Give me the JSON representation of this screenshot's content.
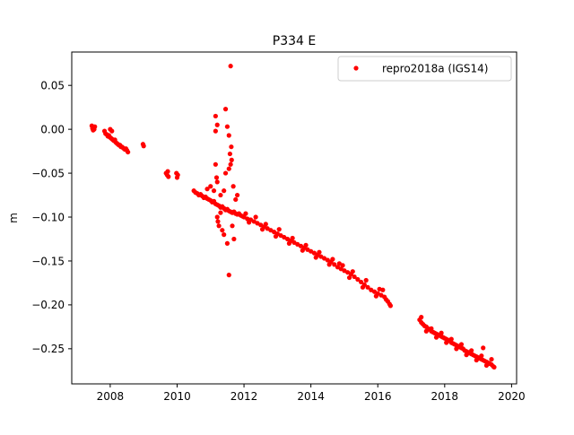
{
  "chart_data": {
    "type": "scatter",
    "title": "P334 E",
    "xlabel": "",
    "ylabel": "m",
    "xlim": [
      2006.85,
      2020.15
    ],
    "ylim": [
      -0.29,
      0.088
    ],
    "xticks": [
      2008,
      2010,
      2012,
      2014,
      2016,
      2018,
      2020
    ],
    "xtick_labels": [
      "2008",
      "2010",
      "2012",
      "2014",
      "2016",
      "2018",
      "2020"
    ],
    "yticks": [
      0.05,
      0.0,
      -0.05,
      -0.1,
      -0.15,
      -0.2,
      -0.25
    ],
    "ytick_labels": [
      "0.05",
      "0.00",
      "−0.05",
      "−0.10",
      "−0.15",
      "−0.20",
      "−0.25"
    ],
    "grid": false,
    "legend_position": "top-right",
    "series": [
      {
        "name": "repro2018a (IGS14)",
        "color": "#ff0000",
        "marker": "circle",
        "points": [
          [
            2007.45,
            0.004
          ],
          [
            2007.47,
            0.001
          ],
          [
            2007.49,
            -0.001
          ],
          [
            2007.5,
            0.002
          ],
          [
            2007.52,
            0.0
          ],
          [
            2007.54,
            0.003
          ],
          [
            2007.83,
            -0.002
          ],
          [
            2007.86,
            -0.005
          ],
          [
            2007.9,
            -0.006
          ],
          [
            2007.93,
            -0.008
          ],
          [
            2007.96,
            -0.007
          ],
          [
            2007.99,
            -0.009
          ],
          [
            2008.02,
            -0.01
          ],
          [
            2008.05,
            -0.011
          ],
          [
            2008.08,
            -0.012
          ],
          [
            2008.11,
            -0.013
          ],
          [
            2008.14,
            -0.012
          ],
          [
            2008.17,
            -0.015
          ],
          [
            2008.2,
            -0.016
          ],
          [
            2008.23,
            -0.017
          ],
          [
            2008.26,
            -0.018
          ],
          [
            2008.29,
            -0.018
          ],
          [
            2008.32,
            -0.02
          ],
          [
            2008.35,
            -0.02
          ],
          [
            2008.38,
            -0.021
          ],
          [
            2008.41,
            -0.022
          ],
          [
            2008.44,
            -0.023
          ],
          [
            2008.47,
            -0.022
          ],
          [
            2008.5,
            -0.024
          ],
          [
            2008.53,
            -0.026
          ],
          [
            2008.0,
            0.0
          ],
          [
            2008.05,
            -0.002
          ],
          [
            2008.98,
            -0.017
          ],
          [
            2009.0,
            -0.019
          ],
          [
            2009.67,
            -0.05
          ],
          [
            2009.7,
            -0.052
          ],
          [
            2009.72,
            -0.048
          ],
          [
            2009.74,
            -0.054
          ],
          [
            2009.98,
            -0.05
          ],
          [
            2010.0,
            -0.055
          ],
          [
            2010.02,
            -0.052
          ],
          [
            2010.5,
            -0.07
          ],
          [
            2010.55,
            -0.072
          ],
          [
            2010.6,
            -0.073
          ],
          [
            2010.65,
            -0.075
          ],
          [
            2010.7,
            -0.074
          ],
          [
            2010.75,
            -0.076
          ],
          [
            2010.8,
            -0.078
          ],
          [
            2010.85,
            -0.077
          ],
          [
            2010.9,
            -0.079
          ],
          [
            2010.95,
            -0.08
          ],
          [
            2011.0,
            -0.081
          ],
          [
            2011.05,
            -0.083
          ],
          [
            2011.1,
            -0.082
          ],
          [
            2011.15,
            -0.085
          ],
          [
            2011.2,
            -0.086
          ],
          [
            2011.25,
            -0.087
          ],
          [
            2011.3,
            -0.089
          ],
          [
            2011.35,
            -0.088
          ],
          [
            2011.4,
            -0.09
          ],
          [
            2011.45,
            -0.092
          ],
          [
            2011.5,
            -0.091
          ],
          [
            2011.55,
            -0.093
          ],
          [
            2011.6,
            -0.094
          ],
          [
            2011.65,
            -0.095
          ],
          [
            2011.7,
            -0.094
          ],
          [
            2011.75,
            -0.096
          ],
          [
            2011.8,
            -0.097
          ],
          [
            2011.85,
            -0.096
          ],
          [
            2011.9,
            -0.098
          ],
          [
            2011.95,
            -0.099
          ],
          [
            2010.9,
            -0.068
          ],
          [
            2011.0,
            -0.065
          ],
          [
            2011.1,
            -0.07
          ],
          [
            2011.2,
            -0.06
          ],
          [
            2011.3,
            -0.075
          ],
          [
            2011.4,
            -0.07
          ],
          [
            2011.15,
            -0.04
          ],
          [
            2011.18,
            -0.055
          ],
          [
            2011.2,
            -0.1
          ],
          [
            2011.22,
            -0.105
          ],
          [
            2011.25,
            -0.11
          ],
          [
            2011.3,
            -0.095
          ],
          [
            2011.35,
            -0.115
          ],
          [
            2011.4,
            -0.12
          ],
          [
            2011.45,
            -0.05
          ],
          [
            2011.5,
            -0.13
          ],
          [
            2011.55,
            -0.045
          ],
          [
            2011.6,
            -0.04
          ],
          [
            2011.63,
            -0.035
          ],
          [
            2011.65,
            -0.11
          ],
          [
            2011.7,
            -0.125
          ],
          [
            2011.75,
            -0.08
          ],
          [
            2011.8,
            -0.075
          ],
          [
            2011.15,
            0.015
          ],
          [
            2011.15,
            -0.002
          ],
          [
            2011.2,
            0.005
          ],
          [
            2011.45,
            0.023
          ],
          [
            2011.5,
            0.003
          ],
          [
            2011.55,
            -0.007
          ],
          [
            2011.6,
            0.072
          ],
          [
            2011.62,
            -0.02
          ],
          [
            2011.58,
            -0.028
          ],
          [
            2011.68,
            -0.065
          ],
          [
            2011.55,
            -0.166
          ],
          [
            2012.0,
            -0.1
          ],
          [
            2012.1,
            -0.102
          ],
          [
            2012.2,
            -0.103
          ],
          [
            2012.3,
            -0.105
          ],
          [
            2012.4,
            -0.107
          ],
          [
            2012.5,
            -0.109
          ],
          [
            2012.6,
            -0.111
          ],
          [
            2012.7,
            -0.113
          ],
          [
            2012.8,
            -0.115
          ],
          [
            2012.9,
            -0.117
          ],
          [
            2013.0,
            -0.119
          ],
          [
            2013.1,
            -0.121
          ],
          [
            2013.2,
            -0.123
          ],
          [
            2013.3,
            -0.125
          ],
          [
            2013.4,
            -0.127
          ],
          [
            2013.5,
            -0.129
          ],
          [
            2013.6,
            -0.131
          ],
          [
            2013.7,
            -0.133
          ],
          [
            2013.8,
            -0.135
          ],
          [
            2013.9,
            -0.137
          ],
          [
            2014.0,
            -0.139
          ],
          [
            2014.1,
            -0.141
          ],
          [
            2014.2,
            -0.143
          ],
          [
            2014.3,
            -0.145
          ],
          [
            2014.4,
            -0.147
          ],
          [
            2014.5,
            -0.149
          ],
          [
            2014.6,
            -0.151
          ],
          [
            2014.7,
            -0.154
          ],
          [
            2014.8,
            -0.157
          ],
          [
            2014.9,
            -0.159
          ],
          [
            2015.0,
            -0.161
          ],
          [
            2015.1,
            -0.163
          ],
          [
            2015.2,
            -0.165
          ],
          [
            2015.3,
            -0.168
          ],
          [
            2015.4,
            -0.171
          ],
          [
            2015.5,
            -0.174
          ],
          [
            2015.6,
            -0.177
          ],
          [
            2015.7,
            -0.18
          ],
          [
            2015.8,
            -0.183
          ],
          [
            2015.9,
            -0.185
          ],
          [
            2016.0,
            -0.187
          ],
          [
            2016.1,
            -0.189
          ],
          [
            2016.15,
            -0.183
          ],
          [
            2016.2,
            -0.191
          ],
          [
            2016.25,
            -0.194
          ],
          [
            2016.3,
            -0.196
          ],
          [
            2016.35,
            -0.199
          ],
          [
            2016.38,
            -0.201
          ],
          [
            2012.05,
            -0.096
          ],
          [
            2012.35,
            -0.1
          ],
          [
            2012.65,
            -0.108
          ],
          [
            2013.05,
            -0.114
          ],
          [
            2013.45,
            -0.124
          ],
          [
            2013.85,
            -0.132
          ],
          [
            2014.25,
            -0.14
          ],
          [
            2014.65,
            -0.148
          ],
          [
            2014.95,
            -0.155
          ],
          [
            2015.25,
            -0.162
          ],
          [
            2015.65,
            -0.172
          ],
          [
            2016.05,
            -0.182
          ],
          [
            2012.15,
            -0.106
          ],
          [
            2012.55,
            -0.114
          ],
          [
            2012.95,
            -0.122
          ],
          [
            2013.35,
            -0.13
          ],
          [
            2013.75,
            -0.138
          ],
          [
            2014.15,
            -0.146
          ],
          [
            2014.55,
            -0.154
          ],
          [
            2014.85,
            -0.153
          ],
          [
            2015.15,
            -0.169
          ],
          [
            2015.55,
            -0.18
          ],
          [
            2015.95,
            -0.19
          ],
          [
            2017.25,
            -0.217
          ],
          [
            2017.3,
            -0.22
          ],
          [
            2017.35,
            -0.222
          ],
          [
            2017.4,
            -0.224
          ],
          [
            2017.45,
            -0.225
          ],
          [
            2017.5,
            -0.227
          ],
          [
            2017.55,
            -0.228
          ],
          [
            2017.6,
            -0.23
          ],
          [
            2017.65,
            -0.231
          ],
          [
            2017.7,
            -0.232
          ],
          [
            2017.75,
            -0.233
          ],
          [
            2017.8,
            -0.234
          ],
          [
            2017.85,
            -0.235
          ],
          [
            2017.9,
            -0.236
          ],
          [
            2017.95,
            -0.237
          ],
          [
            2018.0,
            -0.238
          ],
          [
            2018.05,
            -0.239
          ],
          [
            2018.1,
            -0.24
          ],
          [
            2018.15,
            -0.241
          ],
          [
            2018.2,
            -0.243
          ],
          [
            2018.25,
            -0.244
          ],
          [
            2018.3,
            -0.245
          ],
          [
            2018.35,
            -0.246
          ],
          [
            2018.4,
            -0.247
          ],
          [
            2018.45,
            -0.248
          ],
          [
            2018.5,
            -0.249
          ],
          [
            2018.55,
            -0.25
          ],
          [
            2018.6,
            -0.252
          ],
          [
            2018.65,
            -0.253
          ],
          [
            2018.7,
            -0.254
          ],
          [
            2018.75,
            -0.255
          ],
          [
            2018.8,
            -0.256
          ],
          [
            2018.85,
            -0.257
          ],
          [
            2018.9,
            -0.258
          ],
          [
            2018.95,
            -0.259
          ],
          [
            2019.0,
            -0.26
          ],
          [
            2019.05,
            -0.261
          ],
          [
            2019.1,
            -0.262
          ],
          [
            2019.15,
            -0.263
          ],
          [
            2019.2,
            -0.264
          ],
          [
            2019.25,
            -0.265
          ],
          [
            2019.3,
            -0.266
          ],
          [
            2019.35,
            -0.267
          ],
          [
            2019.4,
            -0.268
          ],
          [
            2019.45,
            -0.27
          ],
          [
            2019.48,
            -0.271
          ],
          [
            2017.3,
            -0.214
          ],
          [
            2017.6,
            -0.227
          ],
          [
            2017.9,
            -0.232
          ],
          [
            2018.2,
            -0.239
          ],
          [
            2018.5,
            -0.245
          ],
          [
            2018.8,
            -0.252
          ],
          [
            2019.1,
            -0.258
          ],
          [
            2019.15,
            -0.249
          ],
          [
            2019.4,
            -0.262
          ],
          [
            2017.45,
            -0.23
          ],
          [
            2017.75,
            -0.237
          ],
          [
            2018.05,
            -0.243
          ],
          [
            2018.35,
            -0.25
          ],
          [
            2018.65,
            -0.257
          ],
          [
            2018.95,
            -0.263
          ],
          [
            2019.25,
            -0.269
          ]
        ]
      }
    ]
  }
}
